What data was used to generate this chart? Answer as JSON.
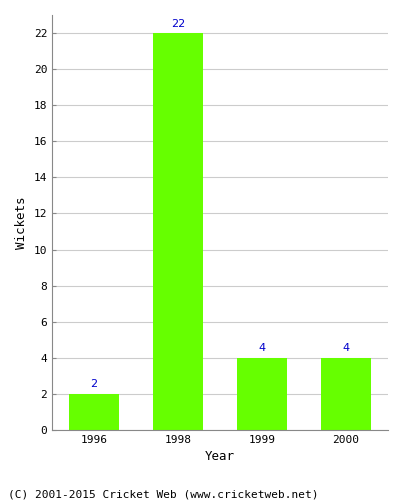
{
  "years": [
    "1996",
    "1998",
    "1999",
    "2000"
  ],
  "wickets": [
    2,
    22,
    4,
    4
  ],
  "bar_color": "#66ff00",
  "bar_edge_color": "#66ff00",
  "label_color": "#0000cc",
  "xlabel": "Year",
  "ylabel": "Wickets",
  "ylim": [
    0,
    23
  ],
  "yticks": [
    0,
    2,
    4,
    6,
    8,
    10,
    12,
    14,
    16,
    18,
    20,
    22
  ],
  "grid_color": "#cccccc",
  "background_color": "#ffffff",
  "footer_text": "(C) 2001-2015 Cricket Web (www.cricketweb.net)",
  "label_fontsize": 8,
  "axis_label_fontsize": 9,
  "tick_fontsize": 8,
  "footer_fontsize": 8
}
